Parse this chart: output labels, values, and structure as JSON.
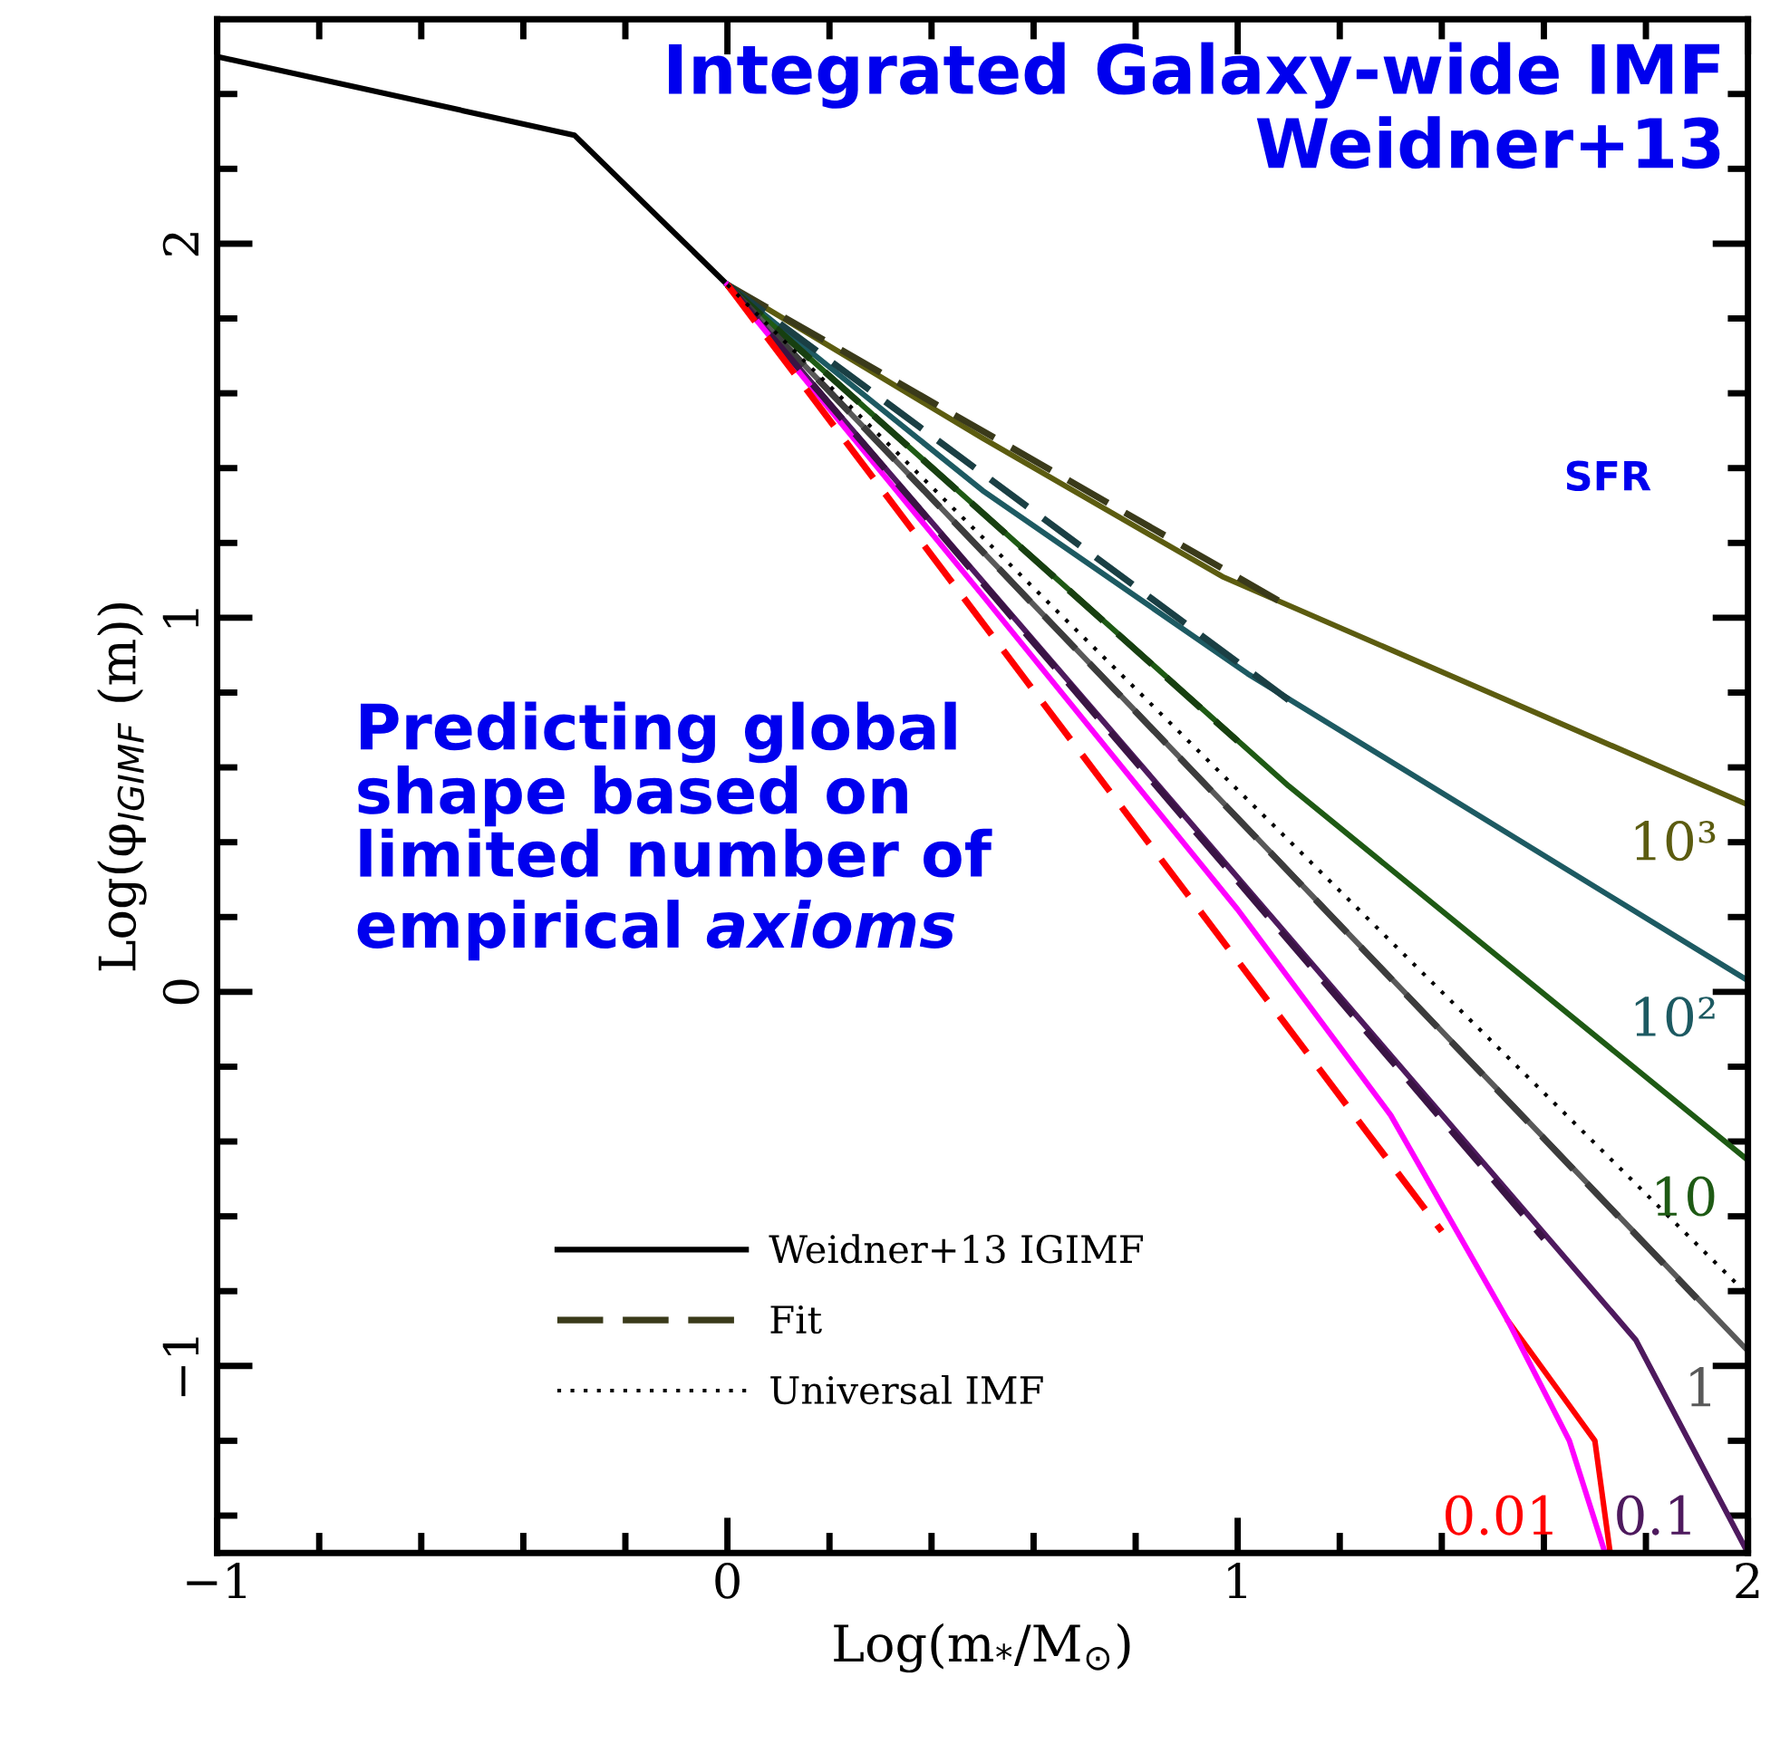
{
  "chart_data": {
    "type": "line",
    "title": "Integrated Galaxy-wide IMF\nWeidner+13",
    "xlabel": "Log(m$_{*}$/M$_{⊙}$)",
    "ylabel": "Log(φ$_{IGIMF}$ (m))",
    "xlim": [
      -1,
      2
    ],
    "ylim": [
      -1.5,
      2.6
    ],
    "xticks": [
      {
        "value": -1,
        "label": "−1"
      },
      {
        "value": -0.8,
        "label": null
      },
      {
        "value": -0.6,
        "label": null
      },
      {
        "value": -0.4,
        "label": null
      },
      {
        "value": -0.2,
        "label": null
      },
      0,
      {
        "value": 0.2,
        "label": null
      },
      {
        "value": 0.4,
        "label": null
      },
      {
        "value": 0.6,
        "label": null
      },
      {
        "value": 0.8,
        "label": null
      },
      1,
      {
        "value": 1.2,
        "label": null
      },
      {
        "value": 1.4,
        "label": null
      },
      {
        "value": 1.6,
        "label": null
      },
      {
        "value": 1.8,
        "label": null
      },
      2
    ],
    "yticks": [
      {
        "value": -1.4,
        "label": null
      },
      {
        "value": -1.2,
        "label": null
      },
      {
        "value": -1,
        "label": "−1"
      },
      {
        "value": -0.8,
        "label": null
      },
      {
        "value": -0.6,
        "label": null
      },
      {
        "value": -0.4,
        "label": null
      },
      {
        "value": -0.2,
        "label": null
      },
      0,
      {
        "value": 0.2,
        "label": null
      },
      {
        "value": 0.4,
        "label": null
      },
      {
        "value": 0.6,
        "label": null
      },
      {
        "value": 0.8,
        "label": null
      },
      1,
      {
        "value": 1.2,
        "label": null
      },
      {
        "value": 1.4,
        "label": null
      },
      {
        "value": 1.6,
        "label": null
      },
      {
        "value": 1.8,
        "label": null
      },
      2,
      {
        "value": 2.2,
        "label": null
      },
      {
        "value": 2.4,
        "label": null
      }
    ],
    "grid": false,
    "legend": "bottom left",
    "series": [
      {
        "name": "Weidner+13 IGIMF",
        "color": "#000000",
        "x": [
          -1,
          -0.3,
          0
        ],
        "values": [
          2.5,
          2.29,
          1.89
        ],
        "line_style": "solid"
      },
      {
        "color": "#5c5c10",
        "x": [
          0,
          0.5,
          0.97,
          2
        ],
        "values": [
          1.89,
          1.48,
          1.11,
          0.5
        ],
        "line_style": "solid"
      },
      {
        "color": "#1d5a62",
        "x": [
          0,
          0.5,
          1.02,
          2
        ],
        "values": [
          1.89,
          1.34,
          0.85,
          0.03
        ],
        "line_style": "solid"
      },
      {
        "color": "#1e5a14",
        "x": [
          0,
          1.1,
          2
        ],
        "values": [
          1.89,
          0.55,
          -0.45
        ],
        "line_style": "solid"
      },
      {
        "color": "#595959",
        "x": [
          0,
          2
        ],
        "values": [
          1.89,
          -0.96
        ],
        "line_style": "solid"
      },
      {
        "color": "#4e1a5e",
        "x": [
          0,
          1.78,
          2
        ],
        "values": [
          1.89,
          -0.93,
          -1.5
        ],
        "line_style": "solid"
      },
      {
        "color": "#ff0000",
        "x": [
          1.53,
          1.7,
          1.73
        ],
        "values": [
          -0.88,
          -1.2,
          -1.5
        ],
        "line_style": "solid"
      },
      {
        "color": "#ff00ff",
        "x": [
          0,
          0.5,
          1.0,
          1.3,
          1.53,
          1.65,
          1.72
        ],
        "values": [
          1.89,
          1.06,
          0.22,
          -0.33,
          -0.88,
          -1.2,
          -1.5
        ],
        "line_style": "solid"
      },
      {
        "name": "Fit",
        "color": "#3a3a1a",
        "x": [
          0,
          1.1
        ],
        "values": [
          1.89,
          1.03
        ],
        "line_style": "dashed"
      },
      {
        "color": "#1a3f44",
        "x": [
          0,
          1.1
        ],
        "values": [
          1.89,
          0.78
        ],
        "line_style": "dashed"
      },
      {
        "color": "#173f10",
        "x": [
          0,
          1.0
        ],
        "values": [
          1.89,
          0.67
        ],
        "line_style": "dashed"
      },
      {
        "color": "#3c3c3c",
        "x": [
          0,
          1.9
        ],
        "values": [
          1.89,
          -0.82
        ],
        "line_style": "dashed"
      },
      {
        "color": "#3a1444",
        "x": [
          0,
          1.6
        ],
        "values": [
          1.89,
          -0.66
        ],
        "line_style": "dashed"
      },
      {
        "color": "#ff0000",
        "x": [
          0,
          1.4
        ],
        "values": [
          1.89,
          -0.64
        ],
        "line_style": "dashed"
      },
      {
        "name": "Universal IMF",
        "color": "#000000",
        "x": [
          0,
          2
        ],
        "values": [
          1.89,
          -0.81
        ],
        "line_style": "dotted"
      }
    ],
    "annotations": [
      "10³",
      "10²",
      "10",
      "1",
      "0.1",
      "0.01",
      "SFR",
      "Predicting global\nshape based on\nlimited number of\nempirical axioms"
    ]
  }
}
